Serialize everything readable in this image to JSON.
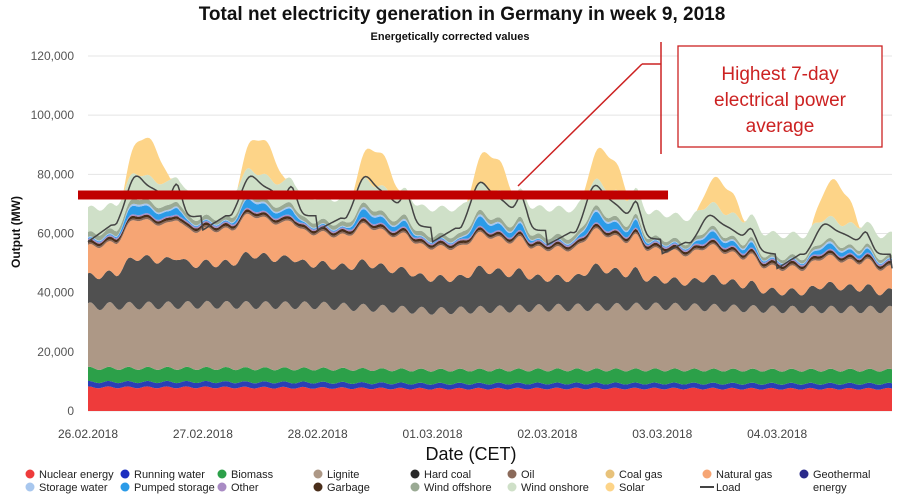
{
  "chart_data": {
    "type": "area",
    "title": "Total net electricity generation in Germany in week 9, 2018",
    "subtitle": "Energetically corrected values",
    "xlabel": "Date (CET)",
    "ylabel": "Output (MW)",
    "ylim": [
      0,
      120000
    ],
    "yticks": [
      0,
      20000,
      40000,
      60000,
      80000,
      100000,
      120000
    ],
    "ytick_labels": [
      "0",
      "20,000",
      "40,000",
      "60,000",
      "80,000",
      "100,000",
      "120,000"
    ],
    "x_labels": [
      "26.02.2018",
      "27.02.2018",
      "28.02.2018",
      "01.03.2018",
      "02.03.2018",
      "03.03.2018",
      "04.03.2018"
    ],
    "days": 7,
    "stack_order": [
      "Nuclear energy",
      "Running water",
      "Biomass",
      "Lignite",
      "Hard coal",
      "Natural gas",
      "Oil",
      "Garbage",
      "Other",
      "Pumped storage",
      "Storage water",
      "Wind offshore",
      "Wind onshore",
      "Solar"
    ],
    "series": [
      {
        "name": "Nuclear energy",
        "color": "#ee3b3b",
        "daily_base": [
          8000,
          8000,
          7800,
          7500,
          7600,
          7600,
          7500
        ],
        "daily_peak_extra": [
          0,
          0,
          0,
          0,
          0,
          0,
          0
        ]
      },
      {
        "name": "Running water",
        "color": "#2a3fb5",
        "daily_base": [
          1800,
          1800,
          1800,
          1700,
          1700,
          1700,
          1700
        ],
        "daily_peak_extra": [
          0,
          0,
          0,
          0,
          0,
          0,
          0
        ]
      },
      {
        "name": "Biomass",
        "color": "#2ca049",
        "daily_base": [
          4600,
          4600,
          4600,
          4600,
          4600,
          4600,
          4600
        ],
        "daily_peak_extra": [
          0,
          0,
          0,
          0,
          0,
          0,
          0
        ]
      },
      {
        "name": "Lignite",
        "color": "#ad9886",
        "daily_base": [
          21000,
          21500,
          21500,
          20000,
          21000,
          21500,
          20500
        ],
        "daily_peak_extra": [
          0,
          0,
          0,
          0,
          0,
          0,
          0
        ]
      },
      {
        "name": "Hard coal",
        "color": "#505050",
        "daily_base": [
          10000,
          14000,
          14000,
          11000,
          10000,
          9000,
          6000
        ],
        "daily_peak_extra": [
          6000,
          4000,
          3000,
          4000,
          5000,
          3000,
          3000
        ]
      },
      {
        "name": "Natural gas",
        "color": "#f6a574",
        "daily_base": [
          10000,
          11500,
          10500,
          10500,
          10000,
          10000,
          8000
        ],
        "daily_peak_extra": [
          3000,
          3000,
          3000,
          2000,
          3000,
          2000,
          2000
        ]
      },
      {
        "name": "Oil",
        "color": "#8b6a5a",
        "daily_base": [
          600,
          600,
          600,
          600,
          600,
          600,
          600
        ],
        "daily_peak_extra": [
          0,
          0,
          0,
          0,
          0,
          0,
          0
        ]
      },
      {
        "name": "Garbage",
        "color": "#4a2e1a",
        "daily_base": [
          900,
          900,
          900,
          900,
          900,
          900,
          900
        ],
        "daily_peak_extra": [
          0,
          0,
          0,
          0,
          0,
          0,
          0
        ]
      },
      {
        "name": "Other",
        "color": "#a98bc4",
        "daily_base": [
          500,
          500,
          500,
          500,
          500,
          500,
          500
        ],
        "daily_peak_extra": [
          0,
          0,
          0,
          0,
          0,
          0,
          0
        ]
      },
      {
        "name": "Pumped storage",
        "color": "#2b9be8",
        "daily_base": [
          300,
          300,
          300,
          300,
          300,
          300,
          300
        ],
        "daily_peak_extra": [
          3500,
          3500,
          3000,
          3500,
          4000,
          2500,
          2000
        ]
      },
      {
        "name": "Storage water",
        "color": "#a8c7ee",
        "daily_base": [
          300,
          300,
          300,
          300,
          300,
          300,
          300
        ],
        "daily_peak_extra": [
          500,
          500,
          500,
          500,
          500,
          500,
          500
        ]
      },
      {
        "name": "Wind offshore",
        "color": "#9aaa94",
        "daily_base": [
          1700,
          1500,
          1500,
          1500,
          1500,
          1300,
          1100
        ],
        "daily_peak_extra": [
          0,
          0,
          0,
          0,
          0,
          0,
          0
        ]
      },
      {
        "name": "Wind onshore",
        "color": "#cfe0c8",
        "daily_base": [
          8500,
          8000,
          8000,
          9000,
          9500,
          8500,
          7500
        ],
        "daily_peak_extra": [
          0,
          0,
          0,
          0,
          0,
          0,
          0
        ]
      },
      {
        "name": "Solar",
        "color": "#fdd488",
        "daily_base": [
          0,
          0,
          0,
          0,
          0,
          0,
          0
        ],
        "daily_peak_extra": [
          13000,
          12000,
          12000,
          12000,
          12000,
          9500,
          13000
        ]
      }
    ],
    "load": {
      "name": "Load",
      "color": "#444444",
      "daily_base": [
        62000,
        66000,
        66000,
        62000,
        61000,
        58000,
        53000
      ],
      "daily_peak_extra": [
        20000,
        17000,
        19000,
        20000,
        21000,
        13000,
        13000
      ]
    },
    "average_line": {
      "value": 73000,
      "x_end_day": 5.05,
      "color": "#c00000"
    },
    "annotation": {
      "text_lines": [
        "Highest 7-day",
        "electrical power",
        "average"
      ],
      "color": "#cc2222"
    },
    "legend": [
      [
        {
          "label": "Nuclear energy",
          "color": "#ee3b3b",
          "marker": "dot"
        },
        {
          "label": "Storage water",
          "color": "#a8c7ee",
          "marker": "dot"
        }
      ],
      [
        {
          "label": "Running water",
          "color": "#1c2fc0",
          "marker": "dot"
        },
        {
          "label": "Pumped storage",
          "color": "#2b9be8",
          "marker": "dot"
        }
      ],
      [
        {
          "label": "Biomass",
          "color": "#2ca049",
          "marker": "dot"
        },
        {
          "label": "Other",
          "color": "#a98bc4",
          "marker": "dot"
        }
      ],
      [
        {
          "label": "Lignite",
          "color": "#ad9886",
          "marker": "dot"
        },
        {
          "label": "Garbage",
          "color": "#4a2e1a",
          "marker": "dot"
        }
      ],
      [
        {
          "label": "Hard coal",
          "color": "#2a2a2a",
          "marker": "dot"
        },
        {
          "label": "Wind offshore",
          "color": "#9aaa94",
          "marker": "dot"
        }
      ],
      [
        {
          "label": "Oil",
          "color": "#8b6a5a",
          "marker": "dot"
        },
        {
          "label": "Wind onshore",
          "color": "#cfe0c8",
          "marker": "dot"
        }
      ],
      [
        {
          "label": "Coal gas",
          "color": "#e8c27a",
          "marker": "dot"
        },
        {
          "label": "Solar",
          "color": "#fdd488",
          "marker": "dot"
        }
      ],
      [
        {
          "label": "Natural gas",
          "color": "#f6a574",
          "marker": "dot"
        },
        {
          "label": "Load",
          "color": "#444444",
          "marker": "line"
        }
      ],
      [
        {
          "label": "Geothermal",
          "color": "#2a2a8a",
          "marker": "dot"
        },
        {
          "label": "energy",
          "color": "",
          "marker": "none"
        }
      ]
    ]
  }
}
